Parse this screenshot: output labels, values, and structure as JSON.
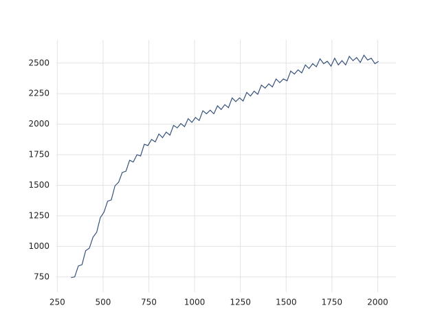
{
  "chart_data": {
    "type": "line",
    "x": [
      325,
      345,
      365,
      385,
      405,
      425,
      445,
      465,
      485,
      505,
      525,
      545,
      565,
      585,
      605,
      625,
      645,
      665,
      685,
      705,
      725,
      745,
      765,
      785,
      805,
      825,
      845,
      865,
      885,
      905,
      925,
      945,
      965,
      985,
      1005,
      1025,
      1045,
      1065,
      1085,
      1105,
      1125,
      1145,
      1165,
      1185,
      1205,
      1225,
      1245,
      1265,
      1285,
      1305,
      1325,
      1345,
      1365,
      1385,
      1405,
      1425,
      1445,
      1465,
      1485,
      1505,
      1525,
      1545,
      1565,
      1585,
      1605,
      1625,
      1645,
      1665,
      1685,
      1705,
      1725,
      1745,
      1765,
      1785,
      1805,
      1825,
      1845,
      1865,
      1885,
      1905,
      1925,
      1945,
      1965,
      1985,
      2005
    ],
    "values": [
      745,
      750,
      840,
      850,
      965,
      985,
      1075,
      1115,
      1235,
      1280,
      1370,
      1380,
      1495,
      1525,
      1605,
      1615,
      1705,
      1690,
      1750,
      1740,
      1835,
      1825,
      1875,
      1855,
      1920,
      1890,
      1935,
      1910,
      1990,
      1970,
      2005,
      1980,
      2045,
      2015,
      2055,
      2030,
      2110,
      2085,
      2115,
      2085,
      2150,
      2120,
      2160,
      2135,
      2215,
      2185,
      2215,
      2190,
      2260,
      2230,
      2270,
      2245,
      2320,
      2295,
      2330,
      2305,
      2370,
      2340,
      2370,
      2355,
      2435,
      2410,
      2445,
      2420,
      2485,
      2455,
      2495,
      2470,
      2535,
      2495,
      2515,
      2475,
      2540,
      2485,
      2520,
      2485,
      2555,
      2520,
      2545,
      2505,
      2565,
      2525,
      2540,
      2495,
      2515
    ],
    "color": "#34507a",
    "xlim": [
      245,
      2100
    ],
    "ylim": [
      625,
      2690
    ],
    "xticks": [
      250,
      500,
      750,
      1000,
      1250,
      1500,
      1750,
      2000
    ],
    "yticks": [
      750,
      1000,
      1250,
      1500,
      1750,
      2000,
      2250,
      2500
    ],
    "grid": true
  }
}
